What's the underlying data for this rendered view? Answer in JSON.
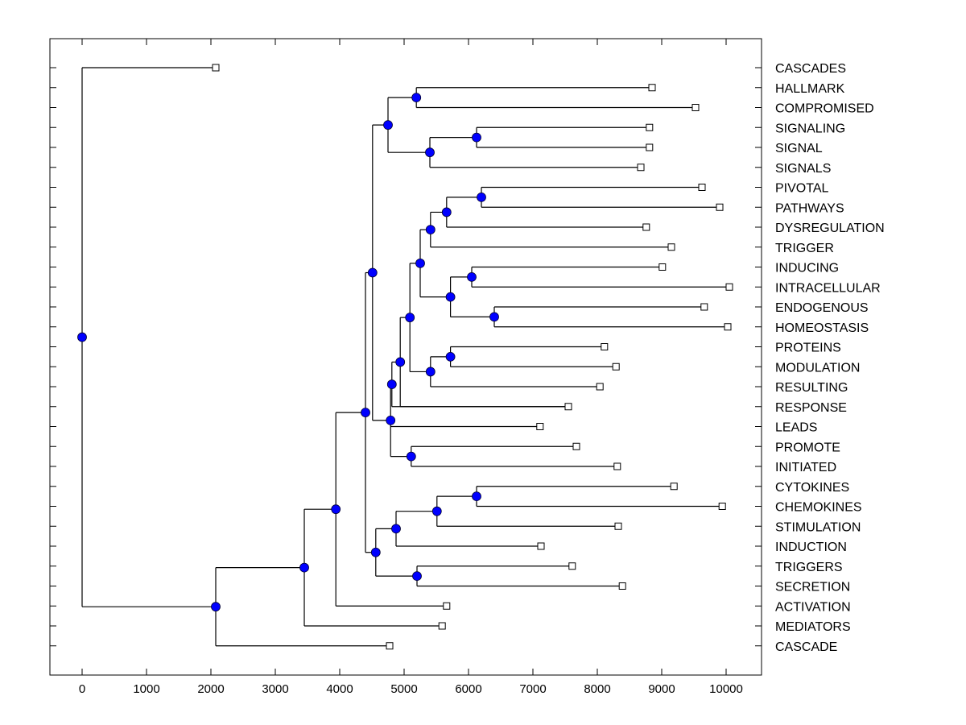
{
  "chart_data": {
    "type": "dendrogram",
    "title": "",
    "xlabel": "",
    "ylabel": "",
    "xlim": [
      -500,
      10550
    ],
    "xticks": [
      0,
      1000,
      2000,
      3000,
      4000,
      5000,
      6000,
      7000,
      8000,
      9000,
      10000
    ],
    "orientation": "left-to-right",
    "leaf_label_position": "right",
    "node_color": "#0000ff",
    "leaves": [
      {
        "label": "CASCADES",
        "x": 2075
      },
      {
        "label": "HALLMARK",
        "x": 8850
      },
      {
        "label": "COMPROMISED",
        "x": 9525
      },
      {
        "label": "SIGNALING",
        "x": 8810
      },
      {
        "label": "SIGNAL",
        "x": 8810
      },
      {
        "label": "SIGNALS",
        "x": 8675
      },
      {
        "label": "PIVOTAL",
        "x": 9625
      },
      {
        "label": "PATHWAYS",
        "x": 9900
      },
      {
        "label": "DYSREGULATION",
        "x": 8760
      },
      {
        "label": "TRIGGER",
        "x": 9150
      },
      {
        "label": "INDUCING",
        "x": 9010
      },
      {
        "label": "INTRACELLULAR",
        "x": 10050
      },
      {
        "label": "ENDOGENOUS",
        "x": 9660
      },
      {
        "label": "HOMEOSTASIS",
        "x": 10025
      },
      {
        "label": "PROTEINS",
        "x": 8110
      },
      {
        "label": "MODULATION",
        "x": 8290
      },
      {
        "label": "RESULTING",
        "x": 8040
      },
      {
        "label": "RESPONSE",
        "x": 7550
      },
      {
        "label": "LEADS",
        "x": 7110
      },
      {
        "label": "PROMOTE",
        "x": 7675
      },
      {
        "label": "INITIATED",
        "x": 8310
      },
      {
        "label": "CYTOKINES",
        "x": 9190
      },
      {
        "label": "CHEMOKINES",
        "x": 9940
      },
      {
        "label": "STIMULATION",
        "x": 8325
      },
      {
        "label": "INDUCTION",
        "x": 7125
      },
      {
        "label": "TRIGGERS",
        "x": 7610
      },
      {
        "label": "SECRETION",
        "x": 8390
      },
      {
        "label": "ACTIVATION",
        "x": 5660
      },
      {
        "label": "MEDIATORS",
        "x": 5590
      },
      {
        "label": "CASCADE",
        "x": 4775
      }
    ],
    "nodes": [
      {
        "id": "root",
        "x": 0,
        "children": [
          "L0",
          "N1"
        ]
      },
      {
        "id": "N1",
        "x": 2075,
        "children": [
          "N2",
          "L29"
        ]
      },
      {
        "id": "N2",
        "x": 3450,
        "children": [
          "N3",
          "L28"
        ]
      },
      {
        "id": "N3",
        "x": 3940,
        "children": [
          "N4",
          "L27"
        ]
      },
      {
        "id": "N4",
        "x": 4400,
        "children": [
          "N5",
          "N6"
        ]
      },
      {
        "id": "N5",
        "x": 4510,
        "children": [
          "N7",
          "N8"
        ]
      },
      {
        "id": "N7",
        "x": 4750,
        "children": [
          "N9",
          "N10"
        ]
      },
      {
        "id": "N9",
        "x": 5190,
        "children": [
          "L1",
          "L2"
        ]
      },
      {
        "id": "N10",
        "x": 5400,
        "children": [
          "N11",
          "L5"
        ]
      },
      {
        "id": "N11",
        "x": 6125,
        "children": [
          "L3",
          "L4"
        ]
      },
      {
        "id": "N8",
        "x": 4790,
        "children": [
          "N12",
          "L18",
          "N13"
        ]
      },
      {
        "id": "N12",
        "x": 4810,
        "children": [
          "N14",
          "L17"
        ]
      },
      {
        "id": "N14",
        "x": 4940,
        "children": [
          "N15",
          "L17b"
        ]
      },
      {
        "id": "N15",
        "x": 5090,
        "children": [
          "N16",
          "N17"
        ]
      },
      {
        "id": "N16",
        "x": 5250,
        "children": [
          "N18",
          "N19"
        ]
      },
      {
        "id": "N18",
        "x": 5410,
        "children": [
          "N20",
          "L9"
        ]
      },
      {
        "id": "N20",
        "x": 5660,
        "children": [
          "N21",
          "L8"
        ]
      },
      {
        "id": "N21",
        "x": 6200,
        "children": [
          "L6",
          "L7"
        ]
      },
      {
        "id": "N19",
        "x": 5720,
        "children": [
          "N22",
          "N23"
        ]
      },
      {
        "id": "N22",
        "x": 6050,
        "children": [
          "L10",
          "L11"
        ]
      },
      {
        "id": "N23",
        "x": 6400,
        "children": [
          "L12",
          "L13"
        ]
      },
      {
        "id": "N17",
        "x": 5410,
        "children": [
          "N24",
          "L16"
        ]
      },
      {
        "id": "N24",
        "x": 5720,
        "children": [
          "L14",
          "L15"
        ]
      },
      {
        "id": "N13",
        "x": 5110,
        "children": [
          "L19",
          "L20"
        ]
      },
      {
        "id": "N6",
        "x": 4560,
        "children": [
          "N25",
          "N26"
        ]
      },
      {
        "id": "N25",
        "x": 4875,
        "children": [
          "N27",
          "L24"
        ]
      },
      {
        "id": "N27",
        "x": 5510,
        "children": [
          "N28",
          "L23"
        ]
      },
      {
        "id": "N28",
        "x": 6125,
        "children": [
          "L21",
          "L22"
        ]
      },
      {
        "id": "N26",
        "x": 5200,
        "children": [
          "L25",
          "L26"
        ]
      }
    ]
  }
}
